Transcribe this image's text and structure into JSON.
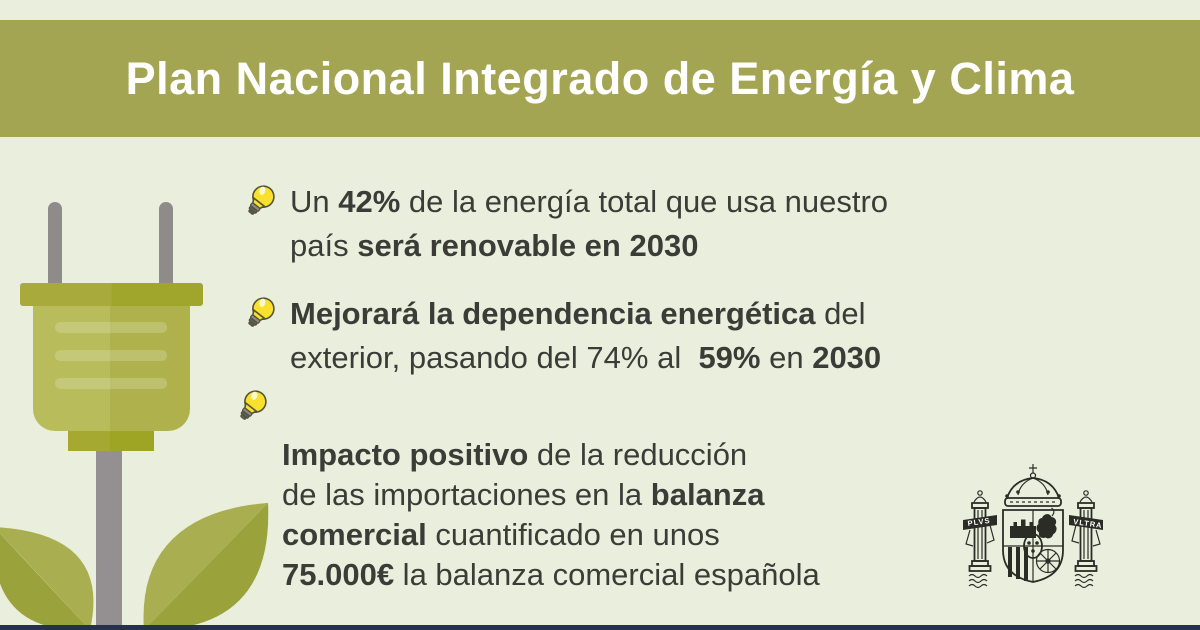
{
  "header": {
    "title": "Plan Nacional Integrado de Energía y Clima"
  },
  "bullets": [
    {
      "icon": "lightbulb-icon",
      "lines": [
        [
          {
            "t": "Un ",
            "b": 0
          },
          {
            "t": "42%",
            "b": 1
          },
          {
            "t": " de la energía total que usa nuestro",
            "b": 0
          }
        ],
        [
          {
            "t": "país ",
            "b": 0
          },
          {
            "t": "será renovable en 2030",
            "b": 1
          }
        ]
      ]
    },
    {
      "icon": "lightbulb-icon",
      "lines": [
        [
          {
            "t": "Mejorará la dependencia energética",
            "b": 1
          },
          {
            "t": " del",
            "b": 0
          }
        ],
        [
          {
            "t": "exterior, pasando del 74% al  ",
            "b": 0
          },
          {
            "t": "59%",
            "b": 1
          },
          {
            "t": " en ",
            "b": 0
          },
          {
            "t": "2030",
            "b": 1
          }
        ]
      ]
    },
    {
      "icon": "lightbulb-icon",
      "lines": [
        [
          {
            "t": "Impacto positivo",
            "b": 1
          },
          {
            "t": " de la reducción",
            "b": 0
          }
        ],
        [
          {
            "t": "de las importaciones en la ",
            "b": 0
          },
          {
            "t": "balanza",
            "b": 1
          }
        ],
        [
          {
            "t": "comercial",
            "b": 1
          },
          {
            "t": " cuantificado en unos",
            "b": 0
          }
        ],
        [
          {
            "t": "75.000€",
            "b": 1
          },
          {
            "t": " la balanza comercial española",
            "b": 0
          }
        ]
      ]
    }
  ],
  "emblem": {
    "name": "spain-coat-of-arms",
    "motto_left": "PLVS",
    "motto_right": "VLTRA"
  },
  "illustration": {
    "name": "plug-plant",
    "parts": [
      "plug-prongs",
      "plug-cap",
      "plug-body",
      "plug-neck",
      "stem",
      "leaf-left",
      "leaf-right"
    ]
  },
  "colors": {
    "background": "#e9efdc",
    "header_bg": "#a3a552",
    "header_text": "#ffffff",
    "body_text": "#3b3c38",
    "bulb_yellow": "#f7e12c",
    "plug_light": "#b9bc5b",
    "plug_dark": "#afb24c",
    "plug_cap": "#a8ab3c",
    "leaf_light": "#a9ae50",
    "leaf_dark": "#99a23b",
    "prong_gray": "#8f8b8a",
    "stem_gray": "#949091",
    "emblem_ink": "#2c2c27",
    "bottom_bar": "#26324b"
  }
}
